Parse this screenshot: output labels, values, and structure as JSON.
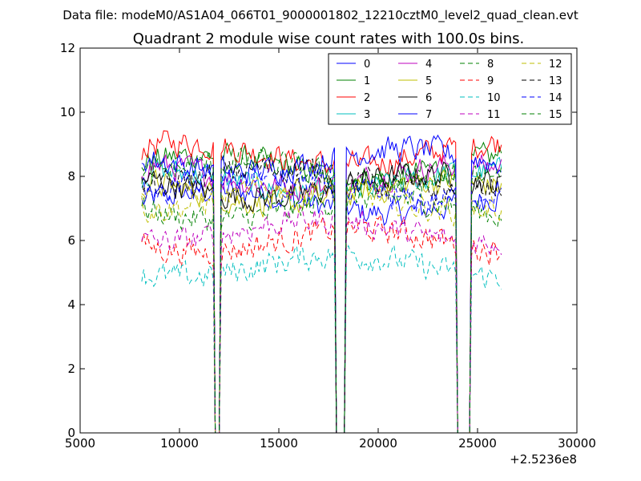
{
  "suptitle": "Data file: modeM0/AS1A04_066T01_9000001802_12210cztM0_level2_quad_clean.evt",
  "chart_data": {
    "type": "line",
    "title": "Quadrant 2 module wise count rates with 100.0s bins.",
    "xlabel": "",
    "ylabel": "",
    "xlim": [
      5000,
      30000
    ],
    "ylim": [
      0,
      12
    ],
    "x_offset_label": "+2.5236e8",
    "x_ticks": [
      5000,
      10000,
      15000,
      20000,
      25000,
      30000
    ],
    "x_tick_labels": [
      "5000",
      "10000",
      "15000",
      "20000",
      "25000",
      "30000"
    ],
    "y_ticks": [
      0,
      2,
      4,
      6,
      8,
      10,
      12
    ],
    "y_tick_labels": [
      "0",
      "2",
      "4",
      "6",
      "8",
      "10",
      "12"
    ],
    "grid": false,
    "legend_position": "top-right",
    "x_range": [
      8100,
      26200
    ],
    "bin_width": 100,
    "gaps": [
      [
        11750,
        12100
      ],
      [
        17850,
        18400
      ],
      [
        23950,
        24700
      ]
    ],
    "series": [
      {
        "name": "0",
        "color": "#0000ff",
        "dash": "solid",
        "base": 7.2
      },
      {
        "name": "1",
        "color": "#008000",
        "dash": "solid",
        "base": 8.3
      },
      {
        "name": "2",
        "color": "#ff0000",
        "dash": "solid",
        "base": 8.7
      },
      {
        "name": "3",
        "color": "#00bfbf",
        "dash": "solid",
        "base": 7.8
      },
      {
        "name": "4",
        "color": "#bf00bf",
        "dash": "solid",
        "base": 8.0
      },
      {
        "name": "5",
        "color": "#bfbf00",
        "dash": "solid",
        "base": 7.5
      },
      {
        "name": "6",
        "color": "#000000",
        "dash": "solid",
        "base": 7.7
      },
      {
        "name": "7",
        "color": "#0000ff",
        "dash": "solid",
        "base": 8.5
      },
      {
        "name": "8",
        "color": "#008000",
        "dash": "dashed",
        "base": 7.0
      },
      {
        "name": "9",
        "color": "#ff0000",
        "dash": "dashed",
        "base": 6.0
      },
      {
        "name": "10",
        "color": "#00bfbf",
        "dash": "dashed",
        "base": 5.2
      },
      {
        "name": "11",
        "color": "#bf00bf",
        "dash": "dashed",
        "base": 6.3
      },
      {
        "name": "12",
        "color": "#bfbf00",
        "dash": "dashed",
        "base": 7.3
      },
      {
        "name": "13",
        "color": "#000000",
        "dash": "dashed",
        "base": 7.9
      },
      {
        "name": "14",
        "color": "#0000ff",
        "dash": "dashed",
        "base": 7.6
      },
      {
        "name": "15",
        "color": "#008000",
        "dash": "dashed",
        "base": 8.1
      }
    ]
  }
}
